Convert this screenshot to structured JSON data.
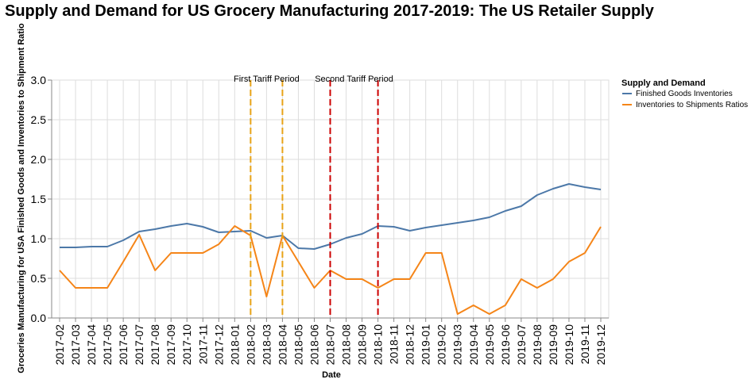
{
  "chart_data": {
    "type": "line",
    "title": "Supply and Demand for US Grocery Manufacturing 2017-2019: The US Retailer Supply",
    "xlabel": "Date",
    "ylabel": "Groceries Manufacturing for USA Finished Goods and Inventories to Shipment Ratio",
    "ylim": [
      0,
      3.0
    ],
    "yticks": [
      "0.0",
      "0.5",
      "1.0",
      "1.5",
      "2.0",
      "2.5",
      "3.0"
    ],
    "grid": true,
    "legend": {
      "title": "Supply and Demand",
      "placement": "right"
    },
    "x": [
      "2017-02",
      "2017-03",
      "2017-04",
      "2017-05",
      "2017-06",
      "2017-07",
      "2017-08",
      "2017-09",
      "2017-10",
      "2017-11",
      "2017-12",
      "2018-01",
      "2018-02",
      "2018-03",
      "2018-04",
      "2018-05",
      "2018-06",
      "2018-07",
      "2018-08",
      "2018-09",
      "2018-10",
      "2018-11",
      "2018-12",
      "2019-01",
      "2019-02",
      "2019-03",
      "2019-04",
      "2019-05",
      "2019-06",
      "2019-07",
      "2019-08",
      "2019-09",
      "2019-10",
      "2019-11",
      "2019-12"
    ],
    "series": [
      {
        "name": "Finished Goods Inventories",
        "color": "#4c78a8",
        "values": [
          0.89,
          0.89,
          0.9,
          0.9,
          0.98,
          1.09,
          1.12,
          1.16,
          1.19,
          1.15,
          1.08,
          1.09,
          1.1,
          1.01,
          1.04,
          0.88,
          0.87,
          0.93,
          1.01,
          1.06,
          1.16,
          1.15,
          1.1,
          1.14,
          1.17,
          1.2,
          1.23,
          1.27,
          1.35,
          1.41,
          1.55,
          1.63,
          1.69,
          1.65,
          1.62
        ]
      },
      {
        "name": "Inventories to Shipments Ratios",
        "color": "#f58518",
        "values": [
          0.6,
          0.38,
          0.38,
          0.38,
          0.71,
          1.05,
          0.6,
          0.82,
          0.82,
          0.82,
          0.93,
          1.16,
          1.04,
          0.27,
          1.04,
          0.71,
          0.38,
          0.6,
          0.49,
          0.49,
          0.38,
          0.49,
          0.49,
          0.82,
          0.82,
          0.05,
          0.16,
          0.05,
          0.16,
          0.49,
          0.38,
          0.49,
          0.71,
          0.82,
          1.15
        ]
      }
    ],
    "annotations": [
      {
        "label": "First Tariff Period",
        "start": "2018-02",
        "end": "2018-04",
        "color": "#e8a317"
      },
      {
        "label": "Second Tariff Period",
        "start": "2018-07",
        "end": "2018-10",
        "color": "#cc0000"
      }
    ]
  }
}
